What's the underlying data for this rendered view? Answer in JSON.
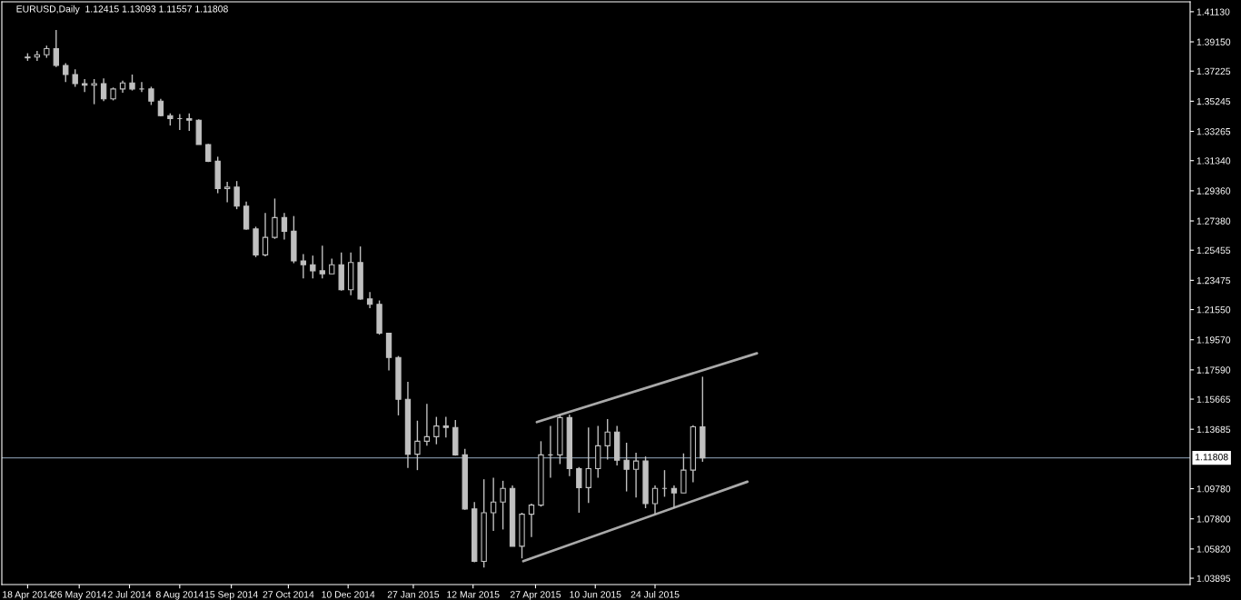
{
  "chart_data": {
    "type": "candlestick",
    "title": "EURUSD,Daily  1.12415 1.13093 1.11557 1.11808",
    "x": [
      "2014-04-18",
      "2014-04-25",
      "2014-05-02",
      "2014-05-09",
      "2014-05-16",
      "2014-05-23",
      "2014-05-30",
      "2014-06-06",
      "2014-06-13",
      "2014-06-20",
      "2014-06-27",
      "2014-07-04",
      "2014-07-11",
      "2014-07-18",
      "2014-07-25",
      "2014-08-01",
      "2014-08-08",
      "2014-08-15",
      "2014-08-22",
      "2014-08-29",
      "2014-09-05",
      "2014-09-12",
      "2014-09-19",
      "2014-09-26",
      "2014-10-03",
      "2014-10-10",
      "2014-10-17",
      "2014-10-24",
      "2014-10-31",
      "2014-11-07",
      "2014-11-14",
      "2014-11-21",
      "2014-11-28",
      "2014-12-05",
      "2014-12-12",
      "2014-12-19",
      "2014-12-26",
      "2015-01-02",
      "2015-01-09",
      "2015-01-16",
      "2015-01-23",
      "2015-01-30",
      "2015-02-06",
      "2015-02-13",
      "2015-02-20",
      "2015-02-27",
      "2015-03-06",
      "2015-03-13",
      "2015-03-20",
      "2015-03-27",
      "2015-04-03",
      "2015-04-10",
      "2015-04-17",
      "2015-04-24",
      "2015-05-01",
      "2015-05-08",
      "2015-05-15",
      "2015-05-22",
      "2015-05-29",
      "2015-06-05",
      "2015-06-12",
      "2015-06-19",
      "2015-06-26",
      "2015-07-03",
      "2015-07-10",
      "2015-07-17",
      "2015-07-24",
      "2015-07-31",
      "2015-08-07",
      "2015-08-14",
      "2015-08-21",
      "2015-08-28"
    ],
    "ohlc": [
      [
        1.381,
        1.384,
        1.379,
        1.3815
      ],
      [
        1.3815,
        1.3855,
        1.379,
        1.383
      ],
      [
        1.383,
        1.389,
        1.381,
        1.387
      ],
      [
        1.387,
        1.3993,
        1.375,
        1.376
      ],
      [
        1.376,
        1.3775,
        1.365,
        1.37
      ],
      [
        1.37,
        1.3735,
        1.362,
        1.364
      ],
      [
        1.364,
        1.367,
        1.3585,
        1.363
      ],
      [
        1.363,
        1.367,
        1.3505,
        1.364
      ],
      [
        1.364,
        1.3675,
        1.3525,
        1.354
      ],
      [
        1.354,
        1.3615,
        1.353,
        1.3605
      ],
      [
        1.3605,
        1.366,
        1.358,
        1.3645
      ],
      [
        1.3645,
        1.37,
        1.3595,
        1.3605
      ],
      [
        1.3605,
        1.365,
        1.3585,
        1.3605
      ],
      [
        1.3605,
        1.362,
        1.35,
        1.3525
      ],
      [
        1.3525,
        1.354,
        1.3425,
        1.343
      ],
      [
        1.343,
        1.3445,
        1.3365,
        1.341
      ],
      [
        1.341,
        1.344,
        1.3335,
        1.341
      ],
      [
        1.341,
        1.3445,
        1.333,
        1.34
      ],
      [
        1.34,
        1.3405,
        1.324,
        1.324
      ],
      [
        1.324,
        1.3245,
        1.3125,
        1.313
      ],
      [
        1.313,
        1.316,
        1.292,
        1.295
      ],
      [
        1.295,
        1.2995,
        1.286,
        1.296
      ],
      [
        1.296,
        1.3,
        1.2815,
        1.2835
      ],
      [
        1.2835,
        1.2865,
        1.268,
        1.2685
      ],
      [
        1.2685,
        1.27,
        1.25,
        1.2515
      ],
      [
        1.2515,
        1.279,
        1.2505,
        1.263
      ],
      [
        1.263,
        1.2885,
        1.262,
        1.276
      ],
      [
        1.276,
        1.279,
        1.2615,
        1.267
      ],
      [
        1.267,
        1.277,
        1.246,
        1.2475
      ],
      [
        1.2475,
        1.252,
        1.236,
        1.245
      ],
      [
        1.245,
        1.251,
        1.236,
        1.241
      ],
      [
        1.241,
        1.2575,
        1.236,
        1.239
      ],
      [
        1.239,
        1.249,
        1.239,
        1.245
      ],
      [
        1.245,
        1.253,
        1.228,
        1.2285
      ],
      [
        1.2285,
        1.253,
        1.225,
        1.2465
      ],
      [
        1.2465,
        1.257,
        1.222,
        1.2225
      ],
      [
        1.2225,
        1.227,
        1.2165,
        1.219
      ],
      [
        1.219,
        1.2215,
        1.199,
        1.2
      ],
      [
        1.2,
        1.2,
        1.1755,
        1.184
      ],
      [
        1.184,
        1.185,
        1.146,
        1.1565
      ],
      [
        1.1565,
        1.168,
        1.1115,
        1.1205
      ],
      [
        1.1205,
        1.1425,
        1.11,
        1.129
      ],
      [
        1.129,
        1.1535,
        1.126,
        1.132
      ],
      [
        1.132,
        1.145,
        1.127,
        1.139
      ],
      [
        1.139,
        1.145,
        1.1315,
        1.138
      ],
      [
        1.138,
        1.143,
        1.1195,
        1.12
      ],
      [
        1.12,
        1.124,
        1.084,
        1.0845
      ],
      [
        1.0845,
        1.089,
        1.0495,
        1.05
      ],
      [
        1.05,
        1.104,
        1.046,
        1.082
      ],
      [
        1.082,
        1.105,
        1.07,
        1.089
      ],
      [
        1.089,
        1.103,
        1.071,
        1.098
      ],
      [
        1.098,
        1.1,
        1.06,
        1.06
      ],
      [
        1.06,
        1.082,
        1.052,
        1.081
      ],
      [
        1.081,
        1.088,
        1.066,
        1.087
      ],
      [
        1.087,
        1.129,
        1.086,
        1.12
      ],
      [
        1.12,
        1.139,
        1.105,
        1.12
      ],
      [
        1.12,
        1.1465,
        1.114,
        1.1445
      ],
      [
        1.1445,
        1.1465,
        1.106,
        1.111
      ],
      [
        1.111,
        1.112,
        1.082,
        1.0985
      ],
      [
        1.0985,
        1.138,
        1.0885,
        1.111
      ],
      [
        1.111,
        1.139,
        1.105,
        1.126
      ],
      [
        1.126,
        1.1435,
        1.117,
        1.135
      ],
      [
        1.135,
        1.139,
        1.113,
        1.1165
      ],
      [
        1.1165,
        1.128,
        1.096,
        1.1105
      ],
      [
        1.1105,
        1.1215,
        1.092,
        1.116
      ],
      [
        1.116,
        1.119,
        1.085,
        1.088
      ],
      [
        1.088,
        1.1,
        1.081,
        1.098
      ],
      [
        1.098,
        1.11,
        1.0925,
        1.098
      ],
      [
        1.098,
        1.1,
        1.085,
        1.095
      ],
      [
        1.095,
        1.121,
        1.095,
        1.11
      ],
      [
        1.11,
        1.1395,
        1.102,
        1.1385
      ],
      [
        1.1385,
        1.1714,
        1.1155,
        1.1181
      ]
    ],
    "color": "#c0c0c0",
    "series": [
      {
        "type": "line",
        "color": "#a9a9a9",
        "x": [
          "2015-04-28",
          "2015-10-07"
        ],
        "values": [
          1.1416,
          1.1868
        ]
      },
      {
        "type": "line",
        "color": "#a9a9a9",
        "x": [
          "2015-04-18",
          "2015-09-30"
        ],
        "values": [
          1.0502,
          1.1024
        ]
      }
    ],
    "ref_lines": [
      {
        "axis": "y",
        "value": 1.11808,
        "label": "1.11808",
        "color": "#778899"
      }
    ],
    "xlim": [
      "2014-03-30",
      "2016-08-21"
    ],
    "xticks": [
      {
        "value": "2014-04-18",
        "label": "18 Apr 2014"
      },
      {
        "value": "2014-05-26",
        "label": "26 May 2014"
      },
      {
        "value": "2014-07-02",
        "label": "2 Jul 2014"
      },
      {
        "value": "2014-08-08",
        "label": "8 Aug 2014"
      },
      {
        "value": "2014-09-15",
        "label": "15 Sep 2014"
      },
      {
        "value": "2014-10-27",
        "label": "27 Oct 2014"
      },
      {
        "value": "2014-12-10",
        "label": "10 Dec 2014"
      },
      {
        "value": "2015-01-27",
        "label": "27 Jan 2015"
      },
      {
        "value": "2015-03-12",
        "label": "12 Mar 2015"
      },
      {
        "value": "2015-04-27",
        "label": "27 Apr 2015"
      },
      {
        "value": "2015-06-10",
        "label": "10 Jun 2015"
      },
      {
        "value": "2015-07-24",
        "label": "24 Jul 2015"
      }
    ],
    "ylim": [
      1.0348,
      1.4178
    ],
    "yticks": [
      {
        "value": 1.4113,
        "label": "1.41130"
      },
      {
        "value": 1.3915,
        "label": "1.39150"
      },
      {
        "value": 1.37225,
        "label": "1.37225"
      },
      {
        "value": 1.35245,
        "label": "1.35245"
      },
      {
        "value": 1.33265,
        "label": "1.33265"
      },
      {
        "value": 1.3134,
        "label": "1.31340"
      },
      {
        "value": 1.2936,
        "label": "1.29360"
      },
      {
        "value": 1.2738,
        "label": "1.27380"
      },
      {
        "value": 1.25455,
        "label": "1.25455"
      },
      {
        "value": 1.23475,
        "label": "1.23475"
      },
      {
        "value": 1.2155,
        "label": "1.21550"
      },
      {
        "value": 1.1957,
        "label": "1.19570"
      },
      {
        "value": 1.1759,
        "label": "1.17590"
      },
      {
        "value": 1.15665,
        "label": "1.15665"
      },
      {
        "value": 1.13685,
        "label": "1.13685"
      },
      {
        "value": 1.0978,
        "label": "1.09780"
      },
      {
        "value": 1.078,
        "label": "1.07800"
      },
      {
        "value": 1.0582,
        "label": "1.05820"
      },
      {
        "value": 1.03895,
        "label": "1.03895"
      }
    ]
  }
}
